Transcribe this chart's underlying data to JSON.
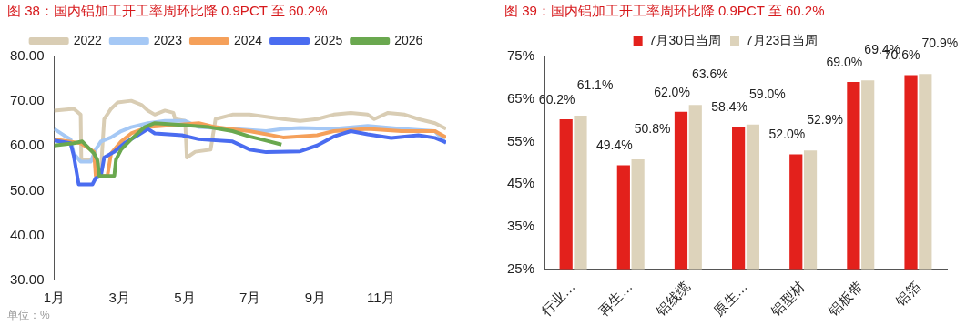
{
  "chart_data": [
    {
      "type": "line",
      "title": "图 38：国内铝加工开工率周环比降 0.9PCT 至 60.2%",
      "annotations": [
        "单位：%"
      ],
      "legend": "top",
      "marker": "none",
      "line_style": "solid",
      "grid": false,
      "xlim": [
        1,
        13
      ],
      "xticks": [
        {
          "value": 1,
          "label": "1月"
        },
        {
          "value": 3,
          "label": "3月"
        },
        {
          "value": 5,
          "label": "5月"
        },
        {
          "value": 7,
          "label": "7月"
        },
        {
          "value": 9,
          "label": "9月"
        },
        {
          "value": 11,
          "label": "11月"
        }
      ],
      "ylim": [
        30,
        80
      ],
      "yticks": [
        {
          "value": 30,
          "label": "30.00"
        },
        {
          "value": 40,
          "label": "40.00"
        },
        {
          "value": 50,
          "label": "50.00"
        },
        {
          "value": 60,
          "label": "60.00"
        },
        {
          "value": 70,
          "label": "70.00"
        },
        {
          "value": 80,
          "label": "80.00"
        }
      ],
      "series": [
        {
          "name": "2022",
          "color": "#d9cdb4",
          "x": [
            1,
            1.6,
            1.81,
            1.83,
            2.27,
            2.43,
            2.53,
            2.74,
            2.94,
            3.36,
            3.67,
            3.87,
            4.08,
            4.39,
            4.65,
            4.7,
            5.01,
            5.06,
            5.32,
            5.79,
            5.94,
            6.46,
            6.98,
            7.49,
            8.01,
            8.53,
            9.05,
            9.56,
            10.08,
            10.6,
            10.8,
            11.22,
            11.73,
            12.15,
            12.66,
            13
          ],
          "values": [
            67.9,
            68.3,
            67,
            56.9,
            56.9,
            54.6,
            66,
            68.3,
            69.7,
            70.1,
            69.2,
            67.9,
            67,
            67.9,
            67.4,
            66,
            65.6,
            57.4,
            58.7,
            59.2,
            66,
            67,
            67,
            66.5,
            66,
            65.6,
            66,
            67,
            67.4,
            67,
            66,
            67.4,
            67,
            66,
            65.1,
            63.8
          ]
        },
        {
          "name": "2023",
          "color": "#a5c8f5",
          "x": [
            1,
            1.29,
            1.5,
            1.6,
            1.81,
            2.12,
            2.27,
            2.43,
            2.74,
            3.05,
            3.36,
            3.87,
            4.39,
            5.01,
            5.43,
            6.46,
            7.49,
            8.01,
            8.53,
            9.56,
            10.6,
            11.63,
            12.66,
            13
          ],
          "values": [
            63.8,
            62.4,
            61.5,
            58.3,
            56.5,
            56.5,
            59.2,
            61,
            61.9,
            63.3,
            64.2,
            65.1,
            65.6,
            65.6,
            64.2,
            63.8,
            63.3,
            63.8,
            64,
            63.8,
            64.5,
            63.8,
            63.3,
            60.6
          ]
        },
        {
          "name": "2024",
          "color": "#f5a05a",
          "x": [
            1,
            1.81,
            2.22,
            2.27,
            2.63,
            2.74,
            3.05,
            3.36,
            3.87,
            5.43,
            5.94,
            6.98,
            8.01,
            9.05,
            9.56,
            10.6,
            11.63,
            12.66,
            13
          ],
          "values": [
            61.5,
            60.6,
            58.7,
            53.3,
            53.3,
            58.3,
            61,
            62.8,
            64.2,
            65.1,
            64.2,
            63.3,
            61.9,
            62.4,
            63.3,
            63.8,
            63.3,
            63.3,
            61.9
          ]
        },
        {
          "name": "2025",
          "color": "#4a6cf0",
          "x": [
            1,
            1.5,
            1.6,
            1.75,
            2.17,
            2.27,
            2.43,
            2.53,
            2.84,
            3.15,
            3.56,
            3.87,
            4.08,
            4.91,
            5.43,
            6.46,
            6.98,
            7.49,
            8.53,
            9.05,
            9.56,
            10.08,
            10.6,
            11.32,
            12.15,
            12.66,
            13
          ],
          "values": [
            61.2,
            60.6,
            57.8,
            51.4,
            51.4,
            52.8,
            53.3,
            57.4,
            58.7,
            60.6,
            62.4,
            63.8,
            62.8,
            62.4,
            61.5,
            61,
            59.2,
            58.6,
            58.8,
            60.1,
            62.1,
            63.3,
            62.6,
            61.8,
            62.4,
            61.8,
            60.8
          ]
        },
        {
          "name": "2026",
          "color": "#6aa84f",
          "x": [
            1,
            1.6,
            1.86,
            2.22,
            2.32,
            2.38,
            2.84,
            2.89,
            3.05,
            3.36,
            3.77,
            4.08,
            4.91,
            5.74,
            6.46,
            6.98,
            7.49,
            7.96
          ],
          "values": [
            60.1,
            60.6,
            61,
            58.3,
            56.9,
            53.3,
            53.3,
            56.9,
            59.2,
            61.5,
            64.2,
            65.1,
            64.7,
            64.2,
            63.3,
            62.1,
            61.2,
            60.3
          ]
        }
      ]
    },
    {
      "type": "bar",
      "title": "图 39：国内铝加工开工率周环比降 0.9PCT 至 60.2%",
      "legend": "top",
      "grid": false,
      "categories": [
        "行业…",
        "再生…",
        "铝线缆",
        "原生…",
        "铝型材",
        "铝板带",
        "铝箔"
      ],
      "ylim": [
        25,
        75
      ],
      "yticks": [
        {
          "value": 25,
          "label": "25%"
        },
        {
          "value": 35,
          "label": "35%"
        },
        {
          "value": 45,
          "label": "45%"
        },
        {
          "value": 55,
          "label": "55%"
        },
        {
          "value": 65,
          "label": "65%"
        },
        {
          "value": 75,
          "label": "75%"
        }
      ],
      "series": [
        {
          "name": "7月30日当周",
          "color": "#e3211c",
          "values": [
            60.2,
            49.4,
            62.0,
            58.4,
            52.0,
            69.0,
            70.6
          ],
          "value_labels": [
            "60.2%",
            "49.4%",
            "62.0%",
            "58.4%",
            "52.0%",
            "69.0%",
            "70.6%"
          ]
        },
        {
          "name": "7月23日当周",
          "color": "#ddd3bb",
          "values": [
            61.1,
            50.8,
            63.6,
            59.0,
            52.9,
            69.4,
            70.9
          ],
          "value_labels": [
            "61.1%",
            "50.8%",
            "63.6%",
            "59.0%",
            "52.9%",
            "69.4%",
            "70.9%"
          ]
        }
      ]
    }
  ]
}
